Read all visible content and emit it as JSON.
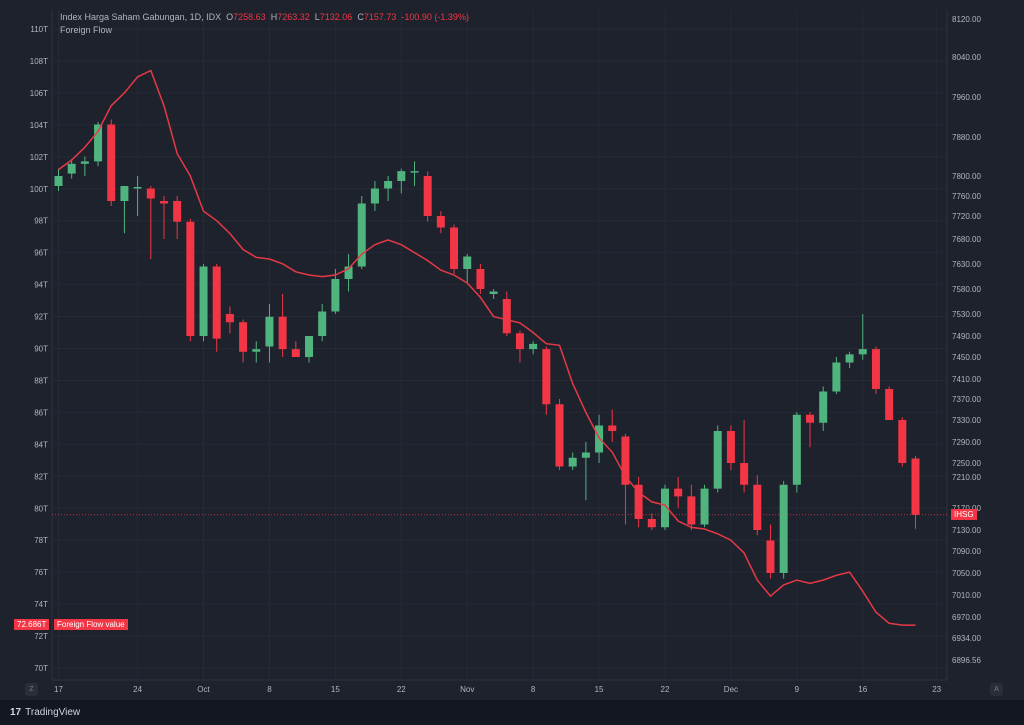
{
  "header": {
    "symbol": "Index Harga Saham Gabungan, 1D, IDX",
    "open_label": "O",
    "open": "7258.63",
    "high_label": "H",
    "high": "7263.32",
    "low_label": "L",
    "low": "7132.06",
    "close_label": "C",
    "close": "7157.73",
    "change": "-100.90 (-1.39%)",
    "indicator": "Foreign Flow"
  },
  "tags": {
    "ihsg": "IHSG",
    "flow_value": "72.686T",
    "flow_label": "Foreign Flow value"
  },
  "buttons": {
    "zoom": "Z",
    "auto": "A"
  },
  "footer": {
    "brand_mark": "17",
    "brand": "TradingView"
  },
  "colors": {
    "up": "#4fb47d",
    "down": "#f23645",
    "flow": "#e63946",
    "bg": "#1e222d"
  },
  "chart_data": {
    "type": "candlestick",
    "left_axis": {
      "label": "Foreign Flow",
      "ticks": [
        "70T",
        "72T",
        "74T",
        "76T",
        "78T",
        "80T",
        "82T",
        "84T",
        "86T",
        "88T",
        "90T",
        "92T",
        "94T",
        "96T",
        "98T",
        "100T",
        "102T",
        "104T",
        "106T",
        "108T",
        "110T"
      ],
      "range": [
        69,
        111
      ]
    },
    "right_axis": {
      "label": "IHSG",
      "ticks": [
        "6896.56",
        "6934.00",
        "6970.00",
        "7010.00",
        "7050.00",
        "7090.00",
        "7130.00",
        "7170.00",
        "7210.00",
        "7250.00",
        "7290.00",
        "7330.00",
        "7370.00",
        "7410.00",
        "7450.00",
        "7490.00",
        "7530.00",
        "7580.00",
        "7630.00",
        "7680.00",
        "7720.00",
        "7760.00",
        "7800.00",
        "7880.00",
        "7960.00",
        "8040.00",
        "8120.00"
      ]
    },
    "x_ticks": [
      {
        "label": "17",
        "index": 0
      },
      {
        "label": "24",
        "index": 6
      },
      {
        "label": "Oct",
        "index": 11
      },
      {
        "label": "8",
        "index": 16
      },
      {
        "label": "15",
        "index": 21
      },
      {
        "label": "22",
        "index": 26
      },
      {
        "label": "Nov",
        "index": 31
      },
      {
        "label": "8",
        "index": 36
      },
      {
        "label": "15",
        "index": 41
      },
      {
        "label": "22",
        "index": 46
      },
      {
        "label": "Dec",
        "index": 51
      },
      {
        "label": "9",
        "index": 56
      },
      {
        "label": "16",
        "index": 61
      },
      {
        "label": "23",
        "index": 66
      }
    ],
    "candles": [
      {
        "o": 7780,
        "h": 7815,
        "l": 7770,
        "c": 7800
      },
      {
        "o": 7805,
        "h": 7835,
        "l": 7795,
        "c": 7825
      },
      {
        "o": 7825,
        "h": 7840,
        "l": 7800,
        "c": 7830
      },
      {
        "o": 7830,
        "h": 7910,
        "l": 7820,
        "c": 7905
      },
      {
        "o": 7905,
        "h": 7915,
        "l": 7740,
        "c": 7750
      },
      {
        "o": 7750,
        "h": 7780,
        "l": 7690,
        "c": 7780
      },
      {
        "o": 7775,
        "h": 7800,
        "l": 7720,
        "c": 7778
      },
      {
        "o": 7775,
        "h": 7780,
        "l": 7640,
        "c": 7755
      },
      {
        "o": 7750,
        "h": 7760,
        "l": 7680,
        "c": 7745
      },
      {
        "o": 7750,
        "h": 7760,
        "l": 7680,
        "c": 7710
      },
      {
        "o": 7710,
        "h": 7715,
        "l": 7480,
        "c": 7490
      },
      {
        "o": 7490,
        "h": 7630,
        "l": 7480,
        "c": 7625
      },
      {
        "o": 7625,
        "h": 7630,
        "l": 7460,
        "c": 7485
      },
      {
        "o": 7530,
        "h": 7545,
        "l": 7495,
        "c": 7515
      },
      {
        "o": 7515,
        "h": 7520,
        "l": 7440,
        "c": 7460
      },
      {
        "o": 7460,
        "h": 7480,
        "l": 7440,
        "c": 7465
      },
      {
        "o": 7470,
        "h": 7550,
        "l": 7440,
        "c": 7525
      },
      {
        "o": 7525,
        "h": 7570,
        "l": 7450,
        "c": 7465
      },
      {
        "o": 7465,
        "h": 7480,
        "l": 7450,
        "c": 7450
      },
      {
        "o": 7450,
        "h": 7490,
        "l": 7440,
        "c": 7490
      },
      {
        "o": 7490,
        "h": 7550,
        "l": 7480,
        "c": 7535
      },
      {
        "o": 7535,
        "h": 7620,
        "l": 7530,
        "c": 7600
      },
      {
        "o": 7600,
        "h": 7650,
        "l": 7575,
        "c": 7625
      },
      {
        "o": 7625,
        "h": 7760,
        "l": 7620,
        "c": 7745
      },
      {
        "o": 7745,
        "h": 7790,
        "l": 7730,
        "c": 7775
      },
      {
        "o": 7775,
        "h": 7800,
        "l": 7750,
        "c": 7790
      },
      {
        "o": 7790,
        "h": 7815,
        "l": 7765,
        "c": 7810
      },
      {
        "o": 7810,
        "h": 7830,
        "l": 7780,
        "c": 7810
      },
      {
        "o": 7800,
        "h": 7810,
        "l": 7710,
        "c": 7720
      },
      {
        "o": 7720,
        "h": 7730,
        "l": 7690,
        "c": 7700
      },
      {
        "o": 7700,
        "h": 7705,
        "l": 7610,
        "c": 7620
      },
      {
        "o": 7620,
        "h": 7650,
        "l": 7590,
        "c": 7645
      },
      {
        "o": 7620,
        "h": 7630,
        "l": 7570,
        "c": 7580
      },
      {
        "o": 7570,
        "h": 7580,
        "l": 7560,
        "c": 7575
      },
      {
        "o": 7560,
        "h": 7575,
        "l": 7490,
        "c": 7495
      },
      {
        "o": 7495,
        "h": 7500,
        "l": 7440,
        "c": 7465
      },
      {
        "o": 7465,
        "h": 7480,
        "l": 7455,
        "c": 7475
      },
      {
        "o": 7465,
        "h": 7470,
        "l": 7340,
        "c": 7360
      },
      {
        "o": 7360,
        "h": 7370,
        "l": 7230,
        "c": 7240
      },
      {
        "o": 7240,
        "h": 7270,
        "l": 7230,
        "c": 7260
      },
      {
        "o": 7260,
        "h": 7290,
        "l": 7180,
        "c": 7270
      },
      {
        "o": 7270,
        "h": 7340,
        "l": 7250,
        "c": 7320
      },
      {
        "o": 7320,
        "h": 7350,
        "l": 7290,
        "c": 7310
      },
      {
        "o": 7300,
        "h": 7305,
        "l": 7140,
        "c": 7200
      },
      {
        "o": 7200,
        "h": 7210,
        "l": 7135,
        "c": 7150
      },
      {
        "o": 7150,
        "h": 7160,
        "l": 7130,
        "c": 7135
      },
      {
        "o": 7135,
        "h": 7200,
        "l": 7130,
        "c": 7195
      },
      {
        "o": 7195,
        "h": 7210,
        "l": 7170,
        "c": 7185
      },
      {
        "o": 7185,
        "h": 7200,
        "l": 7130,
        "c": 7140
      },
      {
        "o": 7140,
        "h": 7200,
        "l": 7135,
        "c": 7195
      },
      {
        "o": 7195,
        "h": 7320,
        "l": 7190,
        "c": 7310
      },
      {
        "o": 7310,
        "h": 7320,
        "l": 7230,
        "c": 7250
      },
      {
        "o": 7250,
        "h": 7330,
        "l": 7190,
        "c": 7200
      },
      {
        "o": 7200,
        "h": 7215,
        "l": 7120,
        "c": 7130
      },
      {
        "o": 7110,
        "h": 7140,
        "l": 7040,
        "c": 7050
      },
      {
        "o": 7050,
        "h": 7205,
        "l": 7040,
        "c": 7200
      },
      {
        "o": 7200,
        "h": 7345,
        "l": 7190,
        "c": 7340
      },
      {
        "o": 7340,
        "h": 7345,
        "l": 7280,
        "c": 7325
      },
      {
        "o": 7325,
        "h": 7395,
        "l": 7310,
        "c": 7385
      },
      {
        "o": 7385,
        "h": 7450,
        "l": 7380,
        "c": 7440
      },
      {
        "o": 7440,
        "h": 7460,
        "l": 7430,
        "c": 7455
      },
      {
        "o": 7455,
        "h": 7530,
        "l": 7445,
        "c": 7465
      },
      {
        "o": 7465,
        "h": 7470,
        "l": 7380,
        "c": 7390
      },
      {
        "o": 7390,
        "h": 7395,
        "l": 7330,
        "c": 7330
      },
      {
        "o": 7330,
        "h": 7335,
        "l": 7240,
        "c": 7250
      },
      {
        "o": 7258.63,
        "h": 7263.32,
        "l": 7132.06,
        "c": 7157.73
      }
    ],
    "foreign_flow": [
      101.2,
      101.8,
      102.6,
      103.6,
      105.2,
      106.0,
      107.0,
      107.4,
      105.2,
      102.2,
      100.8,
      98.6,
      98.0,
      97.2,
      96.2,
      95.7,
      95.6,
      95.3,
      94.8,
      94.6,
      94.5,
      94.6,
      95.0,
      95.9,
      96.5,
      96.8,
      96.5,
      96.0,
      95.5,
      94.9,
      94.6,
      94.1,
      93.2,
      92.0,
      91.8,
      91.6,
      91.0,
      90.3,
      90.2,
      87.8,
      86.0,
      84.4,
      83.5,
      82.0,
      81.0,
      80.4,
      80.2,
      79.2,
      78.8,
      78.7,
      78.4,
      78.0,
      77.2,
      75.5,
      74.5,
      75.2,
      75.5,
      75.3,
      75.5,
      75.8,
      76.0,
      74.8,
      73.5,
      72.8,
      72.686,
      72.686
    ]
  }
}
